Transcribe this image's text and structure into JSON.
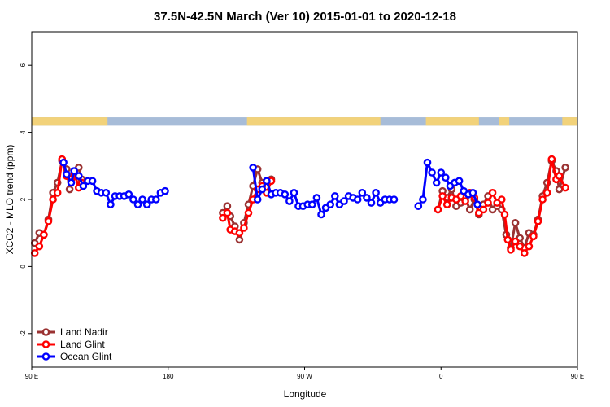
{
  "chart_data": {
    "type": "line",
    "title": "37.5N-42.5N March (Ver 10)   2015-01-01 to 2020-12-18",
    "xlabel": "Longitude",
    "ylabel": "XCO2 - MLO trend (ppm)",
    "xlim": [
      90,
      450
    ],
    "ylim": [
      -3,
      7
    ],
    "x_ticks": [
      {
        "value": 90,
        "label": "90 E"
      },
      {
        "value": 180,
        "label": "180"
      },
      {
        "value": 270,
        "label": "90 W"
      },
      {
        "value": 360,
        "label": "0"
      },
      {
        "value": 450,
        "label": "90 E"
      },
      {
        "value": 540,
        "label": "180"
      }
    ],
    "y_ticks": [
      -2,
      0,
      2,
      4,
      6
    ],
    "grid": false,
    "legend_position": "bottom-left",
    "land_strip": {
      "y_range": [
        4.2,
        4.45
      ],
      "ocean_color": "#a7bcd8",
      "land_color": "#f2d27a",
      "land_segments": [
        [
          90,
          140
        ],
        [
          232,
          320
        ],
        [
          350,
          385
        ],
        [
          398,
          405
        ],
        [
          440,
          475
        ]
      ]
    },
    "series": [
      {
        "name": "Land Nadir",
        "color": "#9a3232",
        "segments": [
          [
            [
              92,
              0.7
            ],
            [
              95,
              1.0
            ],
            [
              98,
              0.95
            ],
            [
              101,
              1.4
            ],
            [
              104,
              2.2
            ],
            [
              107,
              2.5
            ],
            [
              110,
              3.15
            ],
            [
              113,
              2.9
            ],
            [
              115,
              2.3
            ],
            [
              118,
              2.7
            ],
            [
              121,
              2.95
            ],
            [
              123,
              2.6
            ]
          ],
          [
            [
              216,
              1.6
            ],
            [
              219,
              1.8
            ],
            [
              221,
              1.5
            ],
            [
              224,
              1.2
            ],
            [
              227,
              0.8
            ],
            [
              230,
              1.3
            ],
            [
              233,
              1.85
            ],
            [
              236,
              2.4
            ],
            [
              239,
              2.9
            ],
            [
              242,
              2.5
            ],
            [
              245,
              2.55
            ],
            [
              248,
              2.6
            ]
          ],
          [
            [
              358,
              1.7
            ],
            [
              361,
              2.25
            ],
            [
              364,
              2.05
            ],
            [
              367,
              2.3
            ],
            [
              370,
              1.8
            ],
            [
              373,
              1.9
            ],
            [
              376,
              2.05
            ],
            [
              379,
              1.7
            ],
            [
              382,
              2.0
            ],
            [
              385,
              1.55
            ],
            [
              388,
              1.85
            ],
            [
              391,
              2.1
            ],
            [
              394,
              1.7
            ],
            [
              397,
              1.8
            ],
            [
              400,
              1.7
            ],
            [
              403,
              0.95
            ],
            [
              406,
              0.55
            ],
            [
              409,
              1.3
            ],
            [
              412,
              0.85
            ],
            [
              415,
              0.55
            ],
            [
              418,
              1.0
            ],
            [
              421,
              0.95
            ],
            [
              424,
              1.4
            ],
            [
              427,
              2.1
            ],
            [
              430,
              2.5
            ],
            [
              433,
              3.15
            ],
            [
              436,
              2.85
            ],
            [
              438,
              2.3
            ],
            [
              442,
              2.95
            ]
          ]
        ]
      },
      {
        "name": "Land Glint",
        "color": "#ff0000",
        "segments": [
          [
            [
              92,
              0.4
            ],
            [
              95,
              0.6
            ],
            [
              98,
              0.95
            ],
            [
              101,
              1.35
            ],
            [
              104,
              2.0
            ],
            [
              107,
              2.2
            ],
            [
              110,
              3.2
            ],
            [
              113,
              2.7
            ],
            [
              116,
              2.6
            ],
            [
              118,
              2.8
            ],
            [
              121,
              2.35
            ],
            [
              123,
              2.5
            ]
          ],
          [
            [
              216,
              1.45
            ],
            [
              219,
              1.6
            ],
            [
              221,
              1.1
            ],
            [
              224,
              1.05
            ],
            [
              227,
              1.0
            ],
            [
              230,
              1.15
            ],
            [
              233,
              1.6
            ],
            [
              236,
              2.0
            ],
            [
              239,
              2.3
            ],
            [
              242,
              2.4
            ],
            [
              245,
              2.2
            ],
            [
              248,
              2.55
            ]
          ],
          [
            [
              358,
              1.7
            ],
            [
              361,
              2.1
            ],
            [
              364,
              1.85
            ],
            [
              367,
              2.05
            ],
            [
              370,
              2.0
            ],
            [
              373,
              2.1
            ],
            [
              376,
              1.95
            ],
            [
              379,
              2.2
            ],
            [
              382,
              2.05
            ],
            [
              385,
              1.6
            ],
            [
              388,
              1.7
            ],
            [
              391,
              1.9
            ],
            [
              394,
              2.2
            ],
            [
              397,
              1.9
            ],
            [
              400,
              2.0
            ],
            [
              402,
              1.55
            ],
            [
              404,
              0.8
            ],
            [
              406,
              0.5
            ],
            [
              409,
              0.75
            ],
            [
              412,
              0.6
            ],
            [
              415,
              0.4
            ],
            [
              418,
              0.6
            ],
            [
              421,
              0.9
            ],
            [
              424,
              1.35
            ],
            [
              427,
              2.0
            ],
            [
              430,
              2.2
            ],
            [
              433,
              3.2
            ],
            [
              436,
              2.6
            ],
            [
              438,
              2.7
            ],
            [
              442,
              2.35
            ]
          ]
        ]
      },
      {
        "name": "Ocean Glint",
        "color": "#0000ff",
        "segments": [
          [
            [
              111,
              3.1
            ],
            [
              113,
              2.75
            ],
            [
              116,
              2.5
            ],
            [
              118,
              2.85
            ],
            [
              121,
              2.7
            ],
            [
              124,
              2.4
            ],
            [
              127,
              2.55
            ],
            [
              130,
              2.55
            ],
            [
              133,
              2.25
            ],
            [
              136,
              2.2
            ],
            [
              139,
              2.2
            ],
            [
              142,
              1.85
            ],
            [
              145,
              2.1
            ],
            [
              148,
              2.1
            ],
            [
              151,
              2.1
            ],
            [
              154,
              2.15
            ],
            [
              157,
              2.0
            ],
            [
              160,
              1.85
            ],
            [
              163,
              2.0
            ],
            [
              166,
              1.85
            ],
            [
              169,
              2.0
            ],
            [
              172,
              2.0
            ],
            [
              175,
              2.2
            ],
            [
              178,
              2.25
            ]
          ],
          [
            [
              236,
              2.95
            ],
            [
              239,
              2.0
            ],
            [
              242,
              2.3
            ],
            [
              245,
              2.55
            ],
            [
              248,
              2.15
            ],
            [
              251,
              2.2
            ],
            [
              254,
              2.2
            ],
            [
              257,
              2.15
            ],
            [
              260,
              1.95
            ],
            [
              263,
              2.2
            ],
            [
              266,
              1.8
            ],
            [
              269,
              1.8
            ],
            [
              272,
              1.85
            ],
            [
              275,
              1.85
            ],
            [
              278,
              2.05
            ],
            [
              281,
              1.55
            ],
            [
              284,
              1.75
            ],
            [
              287,
              1.85
            ],
            [
              290,
              2.1
            ],
            [
              293,
              1.85
            ],
            [
              296,
              1.95
            ],
            [
              299,
              2.1
            ],
            [
              302,
              2.05
            ],
            [
              305,
              2.0
            ],
            [
              308,
              2.2
            ],
            [
              311,
              2.05
            ],
            [
              314,
              1.9
            ],
            [
              317,
              2.2
            ],
            [
              320,
              1.9
            ],
            [
              323,
              2.0
            ],
            [
              326,
              2.0
            ],
            [
              329,
              2.0
            ]
          ],
          [
            [
              345,
              1.8
            ],
            [
              348,
              2.0
            ],
            [
              351,
              3.1
            ],
            [
              354,
              2.8
            ],
            [
              357,
              2.5
            ],
            [
              360,
              2.8
            ],
            [
              363,
              2.65
            ],
            [
              366,
              2.4
            ],
            [
              369,
              2.5
            ],
            [
              372,
              2.55
            ],
            [
              375,
              2.25
            ],
            [
              378,
              2.15
            ],
            [
              381,
              2.2
            ],
            [
              384,
              1.85
            ]
          ]
        ]
      }
    ]
  }
}
